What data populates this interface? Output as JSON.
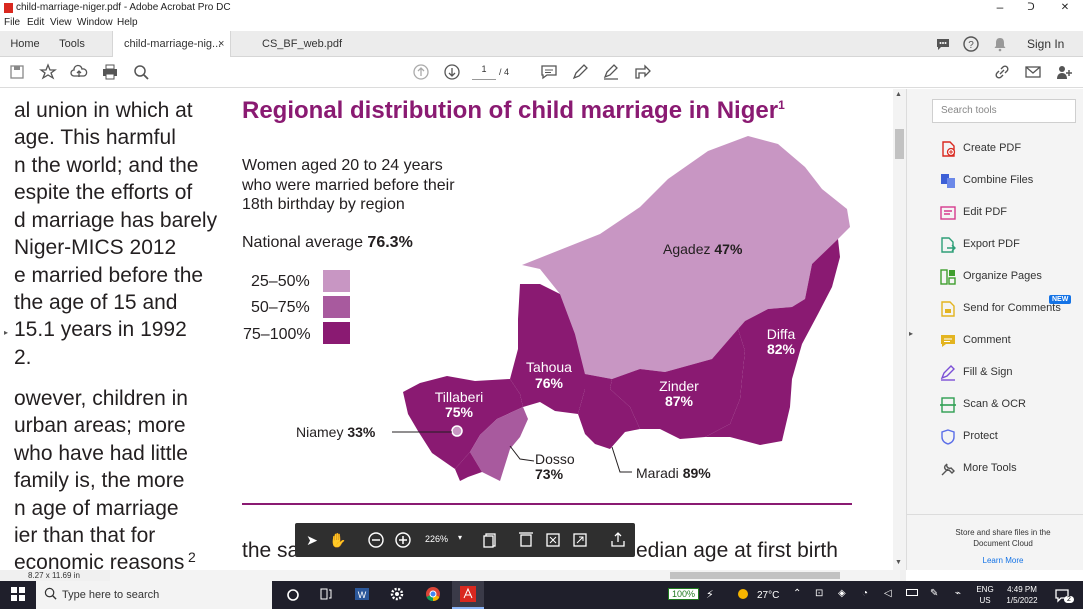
{
  "window": {
    "title": "child-marriage-niger.pdf - Adobe Acrobat Pro DC",
    "controls": {
      "minimize": "–",
      "restore": "ᑐ",
      "close": "✕"
    }
  },
  "menu": [
    "File",
    "Edit",
    "View",
    "Window",
    "Help"
  ],
  "tabs": {
    "home": "Home",
    "tools": "Tools",
    "doc1": "child-marriage-nig...",
    "doc1_close": "×",
    "doc2": "CS_BF_web.pdf",
    "signin": "Sign In"
  },
  "toolbar": {
    "page_current": "1",
    "page_total": "/ 4"
  },
  "document": {
    "left_text": [
      "al union in which at",
      "age. This harmful",
      "n the world; and the",
      "espite the efforts of",
      "d marriage has barely",
      "Niger-MICS 2012",
      "e married before the",
      "the age of 15 and",
      "15.1 years in 1992",
      "2.",
      "owever, children in",
      "urban areas; more",
      "who have had little",
      "family is, the more",
      "n age of marriage",
      "ier than that for",
      "economic reasons",
      "2"
    ],
    "bottom_left": "the sa",
    "bottom_right": "edian age at first birth",
    "figure": {
      "title": "Regional distribution of child marriage in Niger",
      "title_sup": "1",
      "subtitle_lines": [
        "Women aged 20 to 24 years",
        "who were married before their",
        "18th birthday by region"
      ],
      "national_avg_label": "National average",
      "national_avg_value": "76.3%",
      "legend": [
        {
          "label": "25–50%",
          "color": "#c896c3"
        },
        {
          "label": "50–75%",
          "color": "#a85a9e"
        },
        {
          "label": "75–100%",
          "color": "#8a1a72"
        }
      ],
      "regions": [
        {
          "name": "Agadez",
          "value": "47%",
          "color": "#c896c3"
        },
        {
          "name": "Tahoua",
          "value": "76%",
          "color": "#8a1a72"
        },
        {
          "name": "Tillaberi",
          "value": "75%",
          "color": "#8a1a72"
        },
        {
          "name": "Zinder",
          "value": "87%",
          "color": "#8a1a72"
        },
        {
          "name": "Diffa",
          "value": "82%",
          "color": "#8a1a72"
        },
        {
          "name": "Dosso",
          "value": "73%",
          "color": "#a85a9e"
        },
        {
          "name": "Maradi",
          "value": "89%",
          "color": "#8a1a72"
        },
        {
          "name": "Niamey",
          "value": "33%",
          "color": "#c896c3"
        }
      ]
    }
  },
  "float_toolbar": {
    "zoom": "226%"
  },
  "right_panel": {
    "search_placeholder": "Search tools",
    "tools": [
      "Create PDF",
      "Combine Files",
      "Edit PDF",
      "Export PDF",
      "Organize Pages",
      "Send for Comments",
      "Comment",
      "Fill & Sign",
      "Scan & OCR",
      "Protect",
      "More Tools"
    ],
    "new_badge": "NEW",
    "cloud_text_1": "Store and share files in the",
    "cloud_text_2": "Document Cloud",
    "learn_more": "Learn More"
  },
  "status": {
    "page_size": "8.27 x 11.69 in"
  },
  "taskbar": {
    "search_placeholder": "Type here to search",
    "battery": "100%",
    "weather": "27°C",
    "lang1": "ENG",
    "lang2": "US",
    "time": "4:49 PM",
    "date": "1/5/2022",
    "notif_count": "2"
  },
  "colors": {
    "accent": "#8a1a72",
    "light": "#c896c3",
    "mid": "#a85a9e"
  }
}
